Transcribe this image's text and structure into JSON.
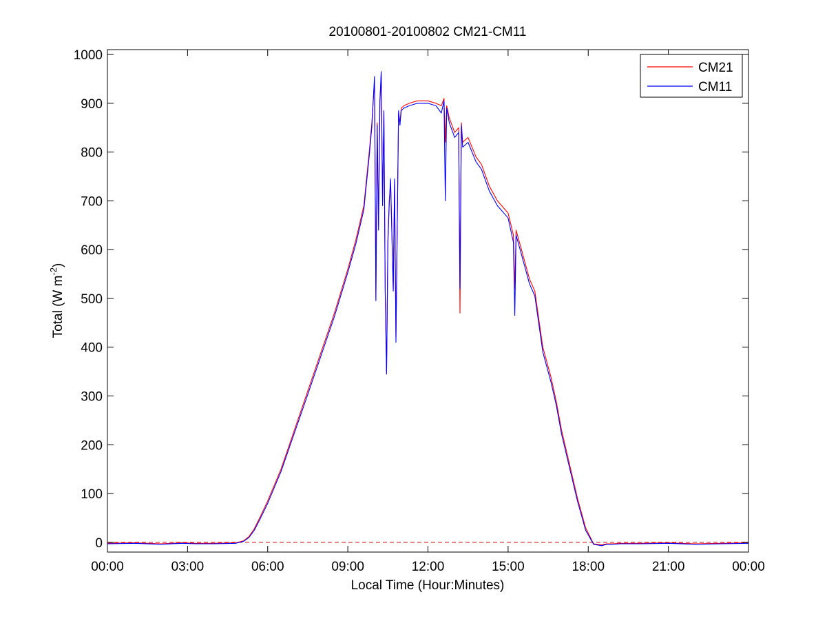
{
  "chart_data": {
    "type": "line",
    "title": "20100801-20100802 CM21-CM11",
    "xlabel": "Local Time (Hour:Minutes)",
    "ylabel": {
      "main": "Total (W m",
      "sup": "-2",
      "tail": ")"
    },
    "x_unit": "hours",
    "xlim": [
      0,
      24
    ],
    "ylim": [
      -20,
      1010
    ],
    "x_ticks": [
      {
        "value": 0,
        "label": "00:00"
      },
      {
        "value": 3,
        "label": "03:00"
      },
      {
        "value": 6,
        "label": "06:00"
      },
      {
        "value": 9,
        "label": "09:00"
      },
      {
        "value": 12,
        "label": "12:00"
      },
      {
        "value": 15,
        "label": "15:00"
      },
      {
        "value": 18,
        "label": "18:00"
      },
      {
        "value": 21,
        "label": "21:00"
      },
      {
        "value": 24,
        "label": "00:00"
      }
    ],
    "y_ticks": [
      0,
      100,
      200,
      300,
      400,
      500,
      600,
      700,
      800,
      900,
      1000
    ],
    "grid": false,
    "legend_position": "top-right",
    "zero_reference_line": {
      "value": 0,
      "color": "#cc0000",
      "style": "dashed"
    },
    "series": [
      {
        "name": "CM21",
        "color": "#ff0000",
        "x": [
          0,
          1,
          2,
          2.8,
          3.3,
          4,
          4.8,
          5.1,
          5.3,
          5.5,
          5.7,
          6.0,
          6.5,
          7.0,
          7.5,
          8.0,
          8.5,
          9.0,
          9.3,
          9.6,
          9.8,
          9.9,
          10.0,
          10.05,
          10.1,
          10.15,
          10.2,
          10.25,
          10.3,
          10.35,
          10.4,
          10.45,
          10.5,
          10.55,
          10.6,
          10.7,
          10.75,
          10.8,
          10.9,
          10.95,
          11.0,
          11.1,
          11.3,
          11.6,
          12.0,
          12.3,
          12.5,
          12.6,
          12.65,
          12.7,
          12.8,
          13.0,
          13.15,
          13.2,
          13.25,
          13.3,
          13.5,
          13.8,
          14.0,
          14.3,
          14.6,
          15.0,
          15.2,
          15.25,
          15.3,
          15.5,
          15.8,
          16.0,
          16.3,
          16.6,
          16.8,
          17.0,
          17.3,
          17.6,
          17.9,
          18.2,
          18.5,
          18.7,
          18.9,
          19.2,
          19.6,
          20,
          21,
          22,
          23,
          24
        ],
        "y": [
          -2,
          -1,
          -3,
          -1,
          -2,
          -2,
          -1,
          3,
          12,
          28,
          50,
          85,
          150,
          230,
          310,
          390,
          470,
          560,
          620,
          690,
          800,
          860,
          950,
          500,
          860,
          650,
          900,
          960,
          700,
          880,
          520,
          345,
          620,
          700,
          740,
          520,
          740,
          420,
          880,
          860,
          890,
          895,
          900,
          905,
          905,
          900,
          895,
          910,
          820,
          895,
          870,
          840,
          850,
          470,
          860,
          820,
          830,
          790,
          775,
          730,
          700,
          675,
          630,
          520,
          640,
          600,
          540,
          515,
          400,
          340,
          290,
          230,
          160,
          90,
          30,
          -3,
          -5,
          -3,
          -3,
          -2,
          -2,
          -2,
          -1,
          -3,
          -2,
          -1
        ]
      },
      {
        "name": "CM11",
        "color": "#0000ff",
        "x": [
          0,
          1,
          2,
          2.8,
          3.3,
          4,
          4.8,
          5.1,
          5.3,
          5.5,
          5.7,
          6.0,
          6.5,
          7.0,
          7.5,
          8.0,
          8.5,
          9.0,
          9.3,
          9.6,
          9.8,
          9.9,
          10.0,
          10.05,
          10.1,
          10.15,
          10.2,
          10.25,
          10.3,
          10.35,
          10.4,
          10.45,
          10.5,
          10.55,
          10.6,
          10.7,
          10.75,
          10.8,
          10.9,
          10.95,
          11.0,
          11.1,
          11.3,
          11.6,
          12.0,
          12.3,
          12.5,
          12.6,
          12.65,
          12.7,
          12.8,
          13.0,
          13.15,
          13.2,
          13.25,
          13.3,
          13.5,
          13.8,
          14.0,
          14.3,
          14.6,
          15.0,
          15.2,
          15.25,
          15.3,
          15.5,
          15.8,
          16.0,
          16.3,
          16.6,
          16.8,
          17.0,
          17.3,
          17.6,
          17.9,
          18.2,
          18.5,
          18.7,
          18.9,
          19.2,
          19.6,
          20,
          21,
          22,
          23,
          24
        ],
        "y": [
          -3,
          -2,
          -4,
          -2,
          -3,
          -3,
          -2,
          2,
          10,
          25,
          46,
          80,
          145,
          224,
          303,
          383,
          463,
          553,
          612,
          682,
          792,
          852,
          955,
          495,
          855,
          640,
          905,
          965,
          690,
          885,
          515,
          345,
          612,
          695,
          745,
          515,
          745,
          410,
          885,
          855,
          885,
          890,
          895,
          900,
          900,
          895,
          880,
          905,
          700,
          890,
          860,
          830,
          840,
          520,
          855,
          810,
          820,
          780,
          765,
          720,
          690,
          665,
          615,
          465,
          630,
          590,
          530,
          505,
          390,
          330,
          282,
          222,
          153,
          84,
          25,
          -4,
          -7,
          -4,
          -4,
          -3,
          -3,
          -3,
          -2,
          -4,
          -3,
          -2
        ]
      }
    ]
  }
}
